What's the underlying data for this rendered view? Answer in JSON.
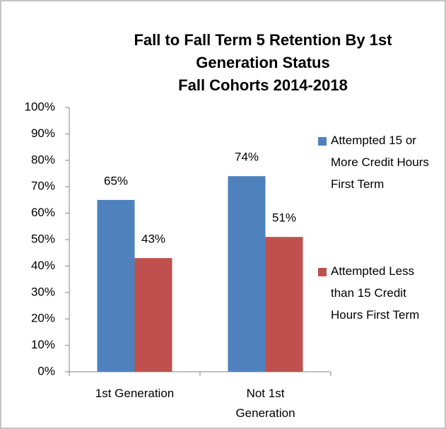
{
  "chart_data": {
    "type": "bar",
    "title": "Fall to Fall Term 5 Retention By 1st Generation Status",
    "subtitle": "Fall Cohorts 2014-2018",
    "categories": [
      "1st Generation",
      "Not 1st Generation"
    ],
    "series": [
      {
        "name": "Attempted 15 or More Credit Hours First Term",
        "color": "#4f81bd",
        "values": [
          65,
          74
        ],
        "value_labels": [
          "65%",
          "74%"
        ]
      },
      {
        "name": "Attempted Less than 15 Credit Hours First Term",
        "color": "#c0504d",
        "values": [
          43,
          51
        ],
        "value_labels": [
          "43%",
          "51%"
        ]
      }
    ],
    "ylim": [
      0,
      100
    ],
    "yticks": [
      {
        "value": 0,
        "label": "0%"
      },
      {
        "value": 10,
        "label": "10%"
      },
      {
        "value": 20,
        "label": "20%"
      },
      {
        "value": 30,
        "label": "30%"
      },
      {
        "value": 40,
        "label": "40%"
      },
      {
        "value": 50,
        "label": "50%"
      },
      {
        "value": 60,
        "label": "60%"
      },
      {
        "value": 70,
        "label": "70%"
      },
      {
        "value": 80,
        "label": "80%"
      },
      {
        "value": 90,
        "label": "90%"
      },
      {
        "value": 100,
        "label": "100%"
      }
    ],
    "grid": false,
    "legend": "right"
  }
}
